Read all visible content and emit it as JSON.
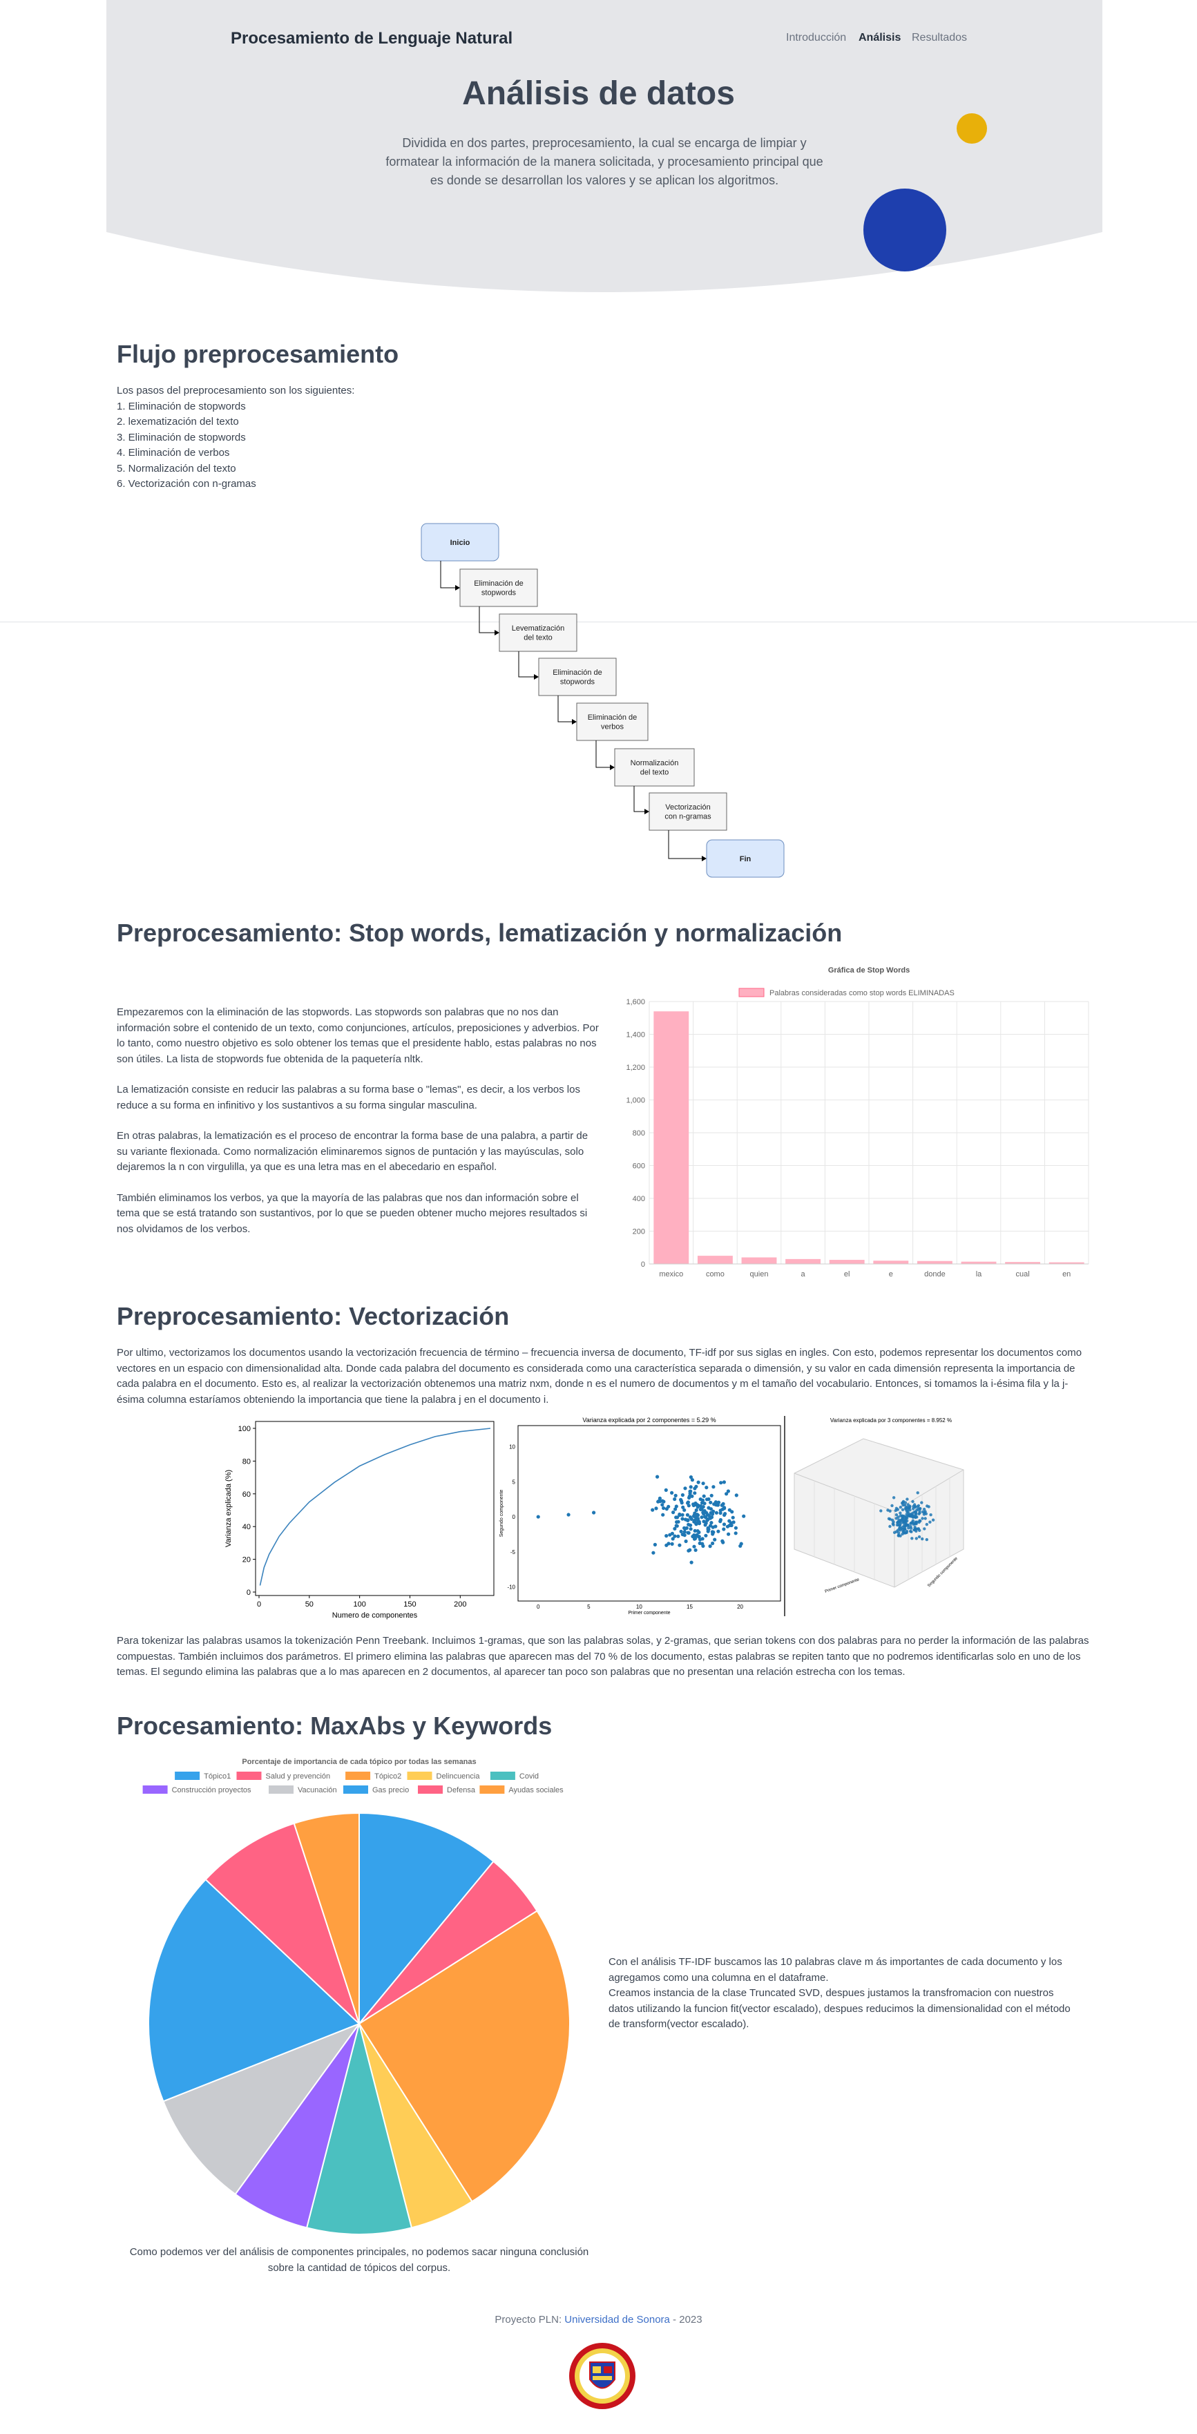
{
  "header": {
    "brand": "Procesamiento de Lenguaje Natural",
    "nav": [
      "Introducción",
      "Análisis",
      "Resultados"
    ],
    "title": "Análisis de datos",
    "subtitle": "Dividida en dos partes, preprocesamiento, la cual se encarga de limpiar y formatear la información de la manera solicitada, y procesamiento principal que es donde se desarrollan los valores y se aplican los algoritmos."
  },
  "colors": {
    "hero_bg": "#e5e6e9",
    "yellow_dot": "#e8b00a",
    "blue_dot": "#1e3fae",
    "link": "#3d6fc7"
  },
  "flujo": {
    "title": "Flujo preprocesamiento",
    "intro": "Los pasos del preprocesamiento son los siguientes:",
    "steps": [
      "1. Eliminación de stopwords",
      "2. lexematización del texto",
      "3. Eliminación de stopwords",
      "4. Eliminación de verbos",
      "5. Normalización del texto",
      "6. Vectorización con n-gramas"
    ],
    "diagram": [
      {
        "label": "Inicio",
        "kind": "terminal"
      },
      {
        "label": "Eliminación de stopwords",
        "kind": "step"
      },
      {
        "label": "Levematización del texto",
        "kind": "step"
      },
      {
        "label": "Eliminación de stopwords",
        "kind": "step"
      },
      {
        "label": "Eliminación de verbos",
        "kind": "step"
      },
      {
        "label": "Normalización del texto",
        "kind": "step"
      },
      {
        "label": "Vectorización con n-gramas",
        "kind": "step"
      },
      {
        "label": "Fin",
        "kind": "terminal"
      }
    ]
  },
  "pre": {
    "title": "Preprocesamiento: Stop words, lematización y normalización",
    "p1": "Empezaremos con la eliminación de las stopwords. Las stopwords son palabras que no nos dan información sobre el contenido de un texto, como conjunciones, artículos, preposiciones y adverbios. Por lo tanto, como nuestro objetivo es solo obtener los temas que el presidente hablo, estas palabras no nos son útiles. La lista de stopwords fue obtenida de la paquetería nltk.",
    "p2": "La lematización consiste en reducir las palabras a su forma base o \"lemas\", es decir, a los verbos los reduce a su forma en infinitivo y los sustantivos a su forma singular masculina.",
    "p3": "En otras palabras, la lematización es el proceso de encontrar la forma base de una palabra, a partir de su variante flexionada. Como normalización eliminaremos signos de puntación y las mayúsculas, solo dejaremos la n con virgulilla, ya que es una letra mas en el abecedario en español.",
    "p4": "También eliminamos los verbos, ya que la mayoría de las palabras que nos dan información sobre el tema que se está tratando son sustantivos, por lo que se pueden obtener mucho mejores resultados si nos olvidamos de los verbos."
  },
  "vec": {
    "title": "Preprocesamiento: Vectorización",
    "p1": "Por ultimo, vectorizamos los documentos usando la vectorización frecuencia de término – frecuencia inversa de documento, TF-idf por sus siglas en ingles. Con esto, podemos representar los documentos como vectores en un espacio con dimensionalidad alta. Donde cada palabra del documento es considerada como una característica separada o dimensión, y su valor en cada dimensión representa la importancia de cada palabra en el documento. Esto es, al realizar la vectorización obtenemos una matriz nxm, donde n es el numero de documentos y m el tamaño del vocabulario. Entonces, si tomamos la i-ésima fila y la j-ésima columna estaríamos obteniendo la importancia que tiene la palabra j en el documento i.",
    "p2": "Para tokenizar las palabras usamos la tokenización Penn Treebank. Incluimos 1-gramas, que son las palabras solas, y 2-gramas, que serian tokens con dos palabras para no perder la información de las palabras compuestas. También incluimos dos parámetros. El primero elimina las palabras que aparecen mas del 70 % de los documento, estas palabras se repiten tanto que no podremos identificarlas solo en uno de los temas. El segundo elimina las palabras que a lo mas aparecen en 2 documentos, al aparecer tan poco son palabras que no presentan una relación estrecha con los temas."
  },
  "proc": {
    "title": "Procesamiento: MaxAbs y Keywords",
    "p1": "Con el análisis TF-IDF buscamos las 10 palabras clave m ás importantes de cada documento y los agregamos como una columna en el dataframe.",
    "p2": "Creamos instancia de la clase Truncated SVD, despues justamos la transfromacion con nuestros datos utilizando la funcion fit(vector escalado), despues reducimos la dimensionalidad con el método de transform(vector escalado).",
    "caption": "Como podemos ver del análisis de componentes principales, no podemos sacar ninguna conclusión sobre la cantidad de tópicos del corpus."
  },
  "footer": {
    "prefix": "Proyecto PLN: ",
    "link": "Universidad de Sonora",
    "suffix": " - 2023"
  },
  "chart_data": [
    {
      "type": "bar",
      "title": "Gráfica de Stop Words",
      "legend": "Palabras consideradas como stop words ELIMINADAS",
      "legend_position": "top",
      "categories": [
        "mexico",
        "como",
        "quien",
        "a",
        "el",
        "e",
        "donde",
        "la",
        "cual",
        "en"
      ],
      "values": [
        1540,
        50,
        40,
        30,
        25,
        20,
        18,
        14,
        12,
        10
      ],
      "ylim": [
        0,
        1600
      ],
      "yticks": [
        "0",
        "200",
        "400",
        "600",
        "800",
        "1,000",
        "1,200",
        "1,400",
        "1,600"
      ],
      "color": "#ffb0c1",
      "grid": true
    },
    {
      "type": "line",
      "title": "",
      "xlabel": "Numero de componentes",
      "ylabel": "Varianza explicada (%)",
      "xlim": [
        0,
        230
      ],
      "ylim": [
        0,
        100
      ],
      "xticks": [
        0,
        50,
        100,
        150,
        200
      ],
      "yticks": [
        0,
        20,
        40,
        60,
        80,
        100
      ],
      "x": [
        1,
        5,
        10,
        20,
        30,
        50,
        75,
        100,
        125,
        150,
        175,
        200,
        230
      ],
      "y": [
        4,
        15,
        23,
        34,
        42,
        55,
        67,
        77,
        84,
        90,
        95,
        98,
        100
      ],
      "color": "#3b83bd"
    },
    {
      "type": "scatter",
      "title": "Varianza explicada por 2 componentes = 5.29 %",
      "xlabel": "Primer componente",
      "ylabel": "Segundo componente",
      "xticks": [
        0,
        5,
        10,
        15,
        20
      ],
      "yticks": [
        -10,
        -5,
        0,
        5,
        10
      ],
      "color": "#1f77b4"
    },
    {
      "type": "scatter",
      "title": "Varianza explicada por 3 componentes = 8.952 %",
      "xlabel": "Primer componente",
      "ylabel": "Segundo componente",
      "color": "#1f77b4"
    },
    {
      "type": "pie",
      "title": "Porcentaje de importancia de cada tópico por todas las semanas",
      "legend_position": "top",
      "slices": [
        {
          "label": "Tópico1",
          "value": 11,
          "color": "#36a2eb"
        },
        {
          "label": "Salud y prevención",
          "value": 5,
          "color": "#ff6384"
        },
        {
          "label": "Tópico2",
          "value": 25,
          "color": "#ff9f40"
        },
        {
          "label": "Delincuencia",
          "value": 5,
          "color": "#ffcd56"
        },
        {
          "label": "Covid",
          "value": 8,
          "color": "#4bc0c0"
        },
        {
          "label": "Construcción proyectos",
          "value": 6,
          "color": "#9966ff"
        },
        {
          "label": "Vacunación",
          "value": 9,
          "color": "#c9cbcf"
        },
        {
          "label": "Gas precio",
          "value": 18,
          "color": "#36a2eb"
        },
        {
          "label": "Defensa",
          "value": 8,
          "color": "#ff6384"
        },
        {
          "label": "Ayudas sociales",
          "value": 5,
          "color": "#ff9f40"
        }
      ]
    }
  ]
}
